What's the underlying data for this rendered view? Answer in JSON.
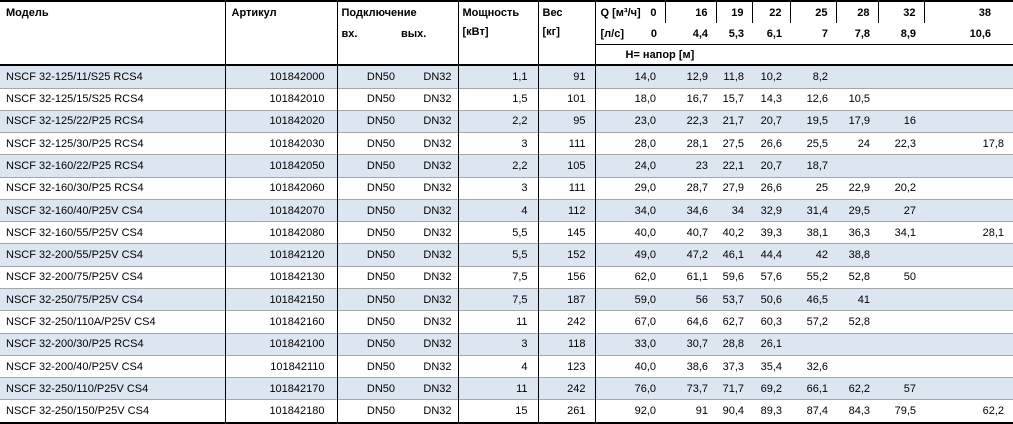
{
  "colors": {
    "stripe": "#dce6f1",
    "row_line": "#a6a6a6",
    "rule": "#000000"
  },
  "table": {
    "headers": {
      "model": "Модель",
      "article": "Артикул",
      "connection": "Подключение",
      "inlet": "вх.",
      "outlet": "вых.",
      "power_line1": "Мощность",
      "power_line2": "[кВт]",
      "weight_line1": "Вес",
      "weight_line2": "[кг]",
      "q_label": "Q [м³/ч]",
      "q_zero": "0",
      "ls_label": "[л/с]",
      "ls_zero": "0",
      "q_flow_m3h": [
        "16",
        "19",
        "22",
        "25",
        "28",
        "32",
        "38"
      ],
      "q_flow_ls": [
        "4,4",
        "5,3",
        "6,1",
        "7",
        "7,8",
        "8,9",
        "10,6"
      ],
      "head_row_label": "Н= напор [м]"
    },
    "rows": [
      {
        "model": "NSCF 32-125/11/S25 RCS4",
        "article": "101842000",
        "inlet": "DN50",
        "outlet": "DN32",
        "power": "1,1",
        "weight": "91",
        "head": [
          "14,0",
          "12,9",
          "11,8",
          "10,2",
          "8,2",
          "",
          "",
          ""
        ]
      },
      {
        "model": "NSCF 32-125/15/S25 RCS4",
        "article": "101842010",
        "inlet": "DN50",
        "outlet": "DN32",
        "power": "1,5",
        "weight": "101",
        "head": [
          "18,0",
          "16,7",
          "15,7",
          "14,3",
          "12,6",
          "10,5",
          "",
          ""
        ]
      },
      {
        "model": "NSCF 32-125/22/P25 RCS4",
        "article": "101842020",
        "inlet": "DN50",
        "outlet": "DN32",
        "power": "2,2",
        "weight": "95",
        "head": [
          "23,0",
          "22,3",
          "21,7",
          "20,7",
          "19,5",
          "17,9",
          "16",
          ""
        ]
      },
      {
        "model": "NSCF 32-125/30/P25 RCS4",
        "article": "101842030",
        "inlet": "DN50",
        "outlet": "DN32",
        "power": "3",
        "weight": "111",
        "head": [
          "28,0",
          "28,1",
          "27,5",
          "26,6",
          "25,5",
          "24",
          "22,3",
          "17,8"
        ]
      },
      {
        "model": "NSCF 32-160/22/P25 RCS4",
        "article": "101842050",
        "inlet": "DN50",
        "outlet": "DN32",
        "power": "2,2",
        "weight": "105",
        "head": [
          "24,0",
          "23",
          "22,1",
          "20,7",
          "18,7",
          "",
          "",
          ""
        ]
      },
      {
        "model": "NSCF 32-160/30/P25 RCS4",
        "article": "101842060",
        "inlet": "DN50",
        "outlet": "DN32",
        "power": "3",
        "weight": "111",
        "head": [
          "29,0",
          "28,7",
          "27,9",
          "26,6",
          "25",
          "22,9",
          "20,2",
          ""
        ]
      },
      {
        "model": "NSCF 32-160/40/P25V CS4",
        "article": "101842070",
        "inlet": "DN50",
        "outlet": "DN32",
        "power": "4",
        "weight": "112",
        "head": [
          "34,0",
          "34,6",
          "34",
          "32,9",
          "31,4",
          "29,5",
          "27",
          ""
        ]
      },
      {
        "model": "NSCF 32-160/55/P25V CS4",
        "article": "101842080",
        "inlet": "DN50",
        "outlet": "DN32",
        "power": "5,5",
        "weight": "145",
        "head": [
          "40,0",
          "40,7",
          "40,2",
          "39,3",
          "38,1",
          "36,3",
          "34,1",
          "28,1"
        ]
      },
      {
        "model": "NSCF 32-200/55/P25V CS4",
        "article": "101842120",
        "inlet": "DN50",
        "outlet": "DN32",
        "power": "5,5",
        "weight": "152",
        "head": [
          "49,0",
          "47,2",
          "46,1",
          "44,4",
          "42",
          "38,8",
          "",
          ""
        ]
      },
      {
        "model": "NSCF 32-200/75/P25V CS4",
        "article": "101842130",
        "inlet": "DN50",
        "outlet": "DN32",
        "power": "7,5",
        "weight": "156",
        "head": [
          "62,0",
          "61,1",
          "59,6",
          "57,6",
          "55,2",
          "52,8",
          "50",
          ""
        ]
      },
      {
        "model": "NSCF 32-250/75/P25V CS4",
        "article": "101842150",
        "inlet": "DN50",
        "outlet": "DN32",
        "power": "7,5",
        "weight": "187",
        "head": [
          "59,0",
          "56",
          "53,7",
          "50,6",
          "46,5",
          "41",
          "",
          ""
        ]
      },
      {
        "model": "NSCF 32-250/110A/P25V CS4",
        "article": "101842160",
        "inlet": "DN50",
        "outlet": "DN32",
        "power": "11",
        "weight": "242",
        "head": [
          "67,0",
          "64,6",
          "62,7",
          "60,3",
          "57,2",
          "52,8",
          "",
          ""
        ]
      },
      {
        "model": "NSCF 32-200/30/P25 RCS4",
        "article": "101842100",
        "inlet": "DN50",
        "outlet": "DN32",
        "power": "3",
        "weight": "118",
        "head": [
          "33,0",
          "30,7",
          "28,8",
          "26,1",
          "",
          "",
          "",
          ""
        ]
      },
      {
        "model": "NSCF 32-200/40/P25V CS4",
        "article": "101842110",
        "inlet": "DN50",
        "outlet": "DN32",
        "power": "4",
        "weight": "123",
        "head": [
          "40,0",
          "38,6",
          "37,3",
          "35,4",
          "32,6",
          "",
          "",
          ""
        ]
      },
      {
        "model": "NSCF 32-250/110/P25V CS4",
        "article": "101842170",
        "inlet": "DN50",
        "outlet": "DN32",
        "power": "11",
        "weight": "242",
        "head": [
          "76,0",
          "73,7",
          "71,7",
          "69,2",
          "66,1",
          "62,2",
          "57",
          ""
        ]
      },
      {
        "model": "NSCF 32-250/150/P25V CS4",
        "article": "101842180",
        "inlet": "DN50",
        "outlet": "DN32",
        "power": "15",
        "weight": "261",
        "head": [
          "92,0",
          "91",
          "90,4",
          "89,3",
          "87,4",
          "84,3",
          "79,5",
          "62,2"
        ]
      }
    ]
  }
}
